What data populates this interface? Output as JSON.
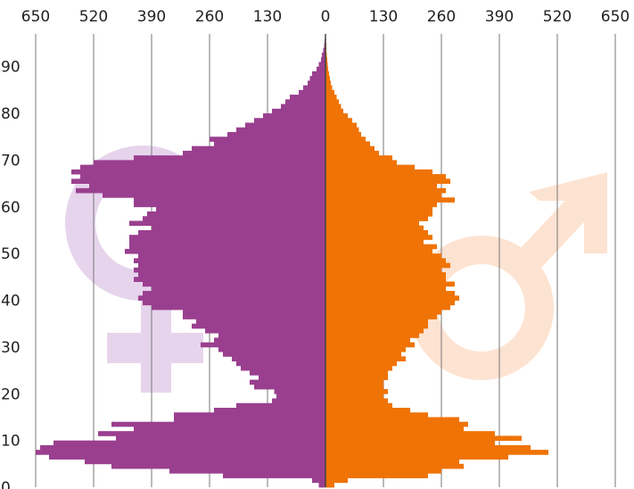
{
  "chart_data": {
    "type": "bar",
    "orientation": "horizontal-mirrored",
    "x_ticks": [
      "650",
      "520",
      "390",
      "260",
      "130",
      "0",
      "130",
      "260",
      "390",
      "520",
      "650"
    ],
    "y_ticks": [
      "0",
      "10",
      "20",
      "30",
      "40",
      "50",
      "60",
      "70",
      "80",
      "90"
    ],
    "xlim": [
      -650,
      650
    ],
    "ylim": [
      0,
      97
    ],
    "grid": true,
    "background_symbols": [
      "female-symbol",
      "male-symbol"
    ],
    "colors": {
      "left_series": "#9a3f8f",
      "right_series": "#ef7305",
      "left_symbol": "#e6d4ec",
      "right_symbol": "#fde3d1",
      "axis": "#444444",
      "grid": "#777777"
    },
    "series": [
      {
        "side": "left",
        "color": "#9a3f8f",
        "ages": [
          0,
          1,
          2,
          3,
          4,
          5,
          6,
          7,
          8,
          9,
          10,
          11,
          12,
          13,
          14,
          15,
          16,
          17,
          18,
          19,
          20,
          21,
          22,
          23,
          24,
          25,
          26,
          27,
          28,
          29,
          30,
          31,
          32,
          33,
          34,
          35,
          36,
          37,
          38,
          39,
          40,
          41,
          42,
          43,
          44,
          45,
          46,
          47,
          48,
          49,
          50,
          51,
          52,
          53,
          54,
          55,
          56,
          57,
          58,
          59,
          60,
          61,
          62,
          63,
          64,
          65,
          66,
          67,
          68,
          69,
          70,
          71,
          72,
          73,
          74,
          75,
          76,
          77,
          78,
          79,
          80,
          81,
          82,
          83,
          84,
          85,
          86,
          87,
          88,
          89,
          90,
          91,
          92,
          93,
          94,
          95,
          96
        ],
        "values": [
          15,
          30,
          230,
          350,
          480,
          540,
          620,
          650,
          640,
          610,
          470,
          510,
          430,
          480,
          340,
          340,
          250,
          200,
          120,
          110,
          115,
          160,
          170,
          150,
          170,
          190,
          200,
          210,
          230,
          240,
          280,
          250,
          240,
          270,
          300,
          290,
          320,
          320,
          390,
          410,
          420,
          410,
          390,
          410,
          430,
          420,
          430,
          420,
          430,
          420,
          450,
          440,
          440,
          440,
          420,
          390,
          440,
          410,
          400,
          380,
          430,
          430,
          500,
          560,
          530,
          570,
          550,
          570,
          550,
          520,
          430,
          320,
          300,
          250,
          260,
          220,
          200,
          180,
          160,
          140,
          120,
          100,
          90,
          80,
          60,
          50,
          40,
          35,
          30,
          20,
          15,
          10,
          8,
          5,
          3,
          2,
          1
        ]
      },
      {
        "side": "right",
        "color": "#ef7305",
        "ages": [
          0,
          1,
          2,
          3,
          4,
          5,
          6,
          7,
          8,
          9,
          10,
          11,
          12,
          13,
          14,
          15,
          16,
          17,
          18,
          19,
          20,
          21,
          22,
          23,
          24,
          25,
          26,
          27,
          28,
          29,
          30,
          31,
          32,
          33,
          34,
          35,
          36,
          37,
          38,
          39,
          40,
          41,
          42,
          43,
          44,
          45,
          46,
          47,
          48,
          49,
          50,
          51,
          52,
          53,
          54,
          55,
          56,
          57,
          58,
          59,
          60,
          61,
          62,
          63,
          64,
          65,
          66,
          67,
          68,
          69,
          70,
          71,
          72,
          73,
          74,
          75,
          76,
          77,
          78,
          79,
          80,
          81,
          82,
          83,
          84,
          85,
          86,
          87,
          88,
          89,
          90,
          91,
          92,
          93,
          94,
          95,
          96
        ],
        "values": [
          20,
          50,
          230,
          260,
          310,
          300,
          410,
          500,
          460,
          380,
          440,
          380,
          310,
          320,
          300,
          230,
          190,
          150,
          140,
          130,
          140,
          130,
          130,
          140,
          140,
          150,
          160,
          180,
          170,
          180,
          200,
          190,
          210,
          220,
          230,
          230,
          250,
          260,
          280,
          290,
          300,
          290,
          270,
          290,
          270,
          270,
          260,
          280,
          270,
          260,
          240,
          250,
          220,
          240,
          230,
          220,
          210,
          230,
          240,
          240,
          250,
          290,
          260,
          270,
          250,
          280,
          270,
          240,
          200,
          160,
          150,
          120,
          110,
          100,
          90,
          80,
          75,
          70,
          60,
          50,
          40,
          35,
          30,
          25,
          20,
          15,
          12,
          10,
          8,
          6,
          5,
          4,
          3,
          2,
          2,
          1,
          1
        ]
      }
    ]
  }
}
